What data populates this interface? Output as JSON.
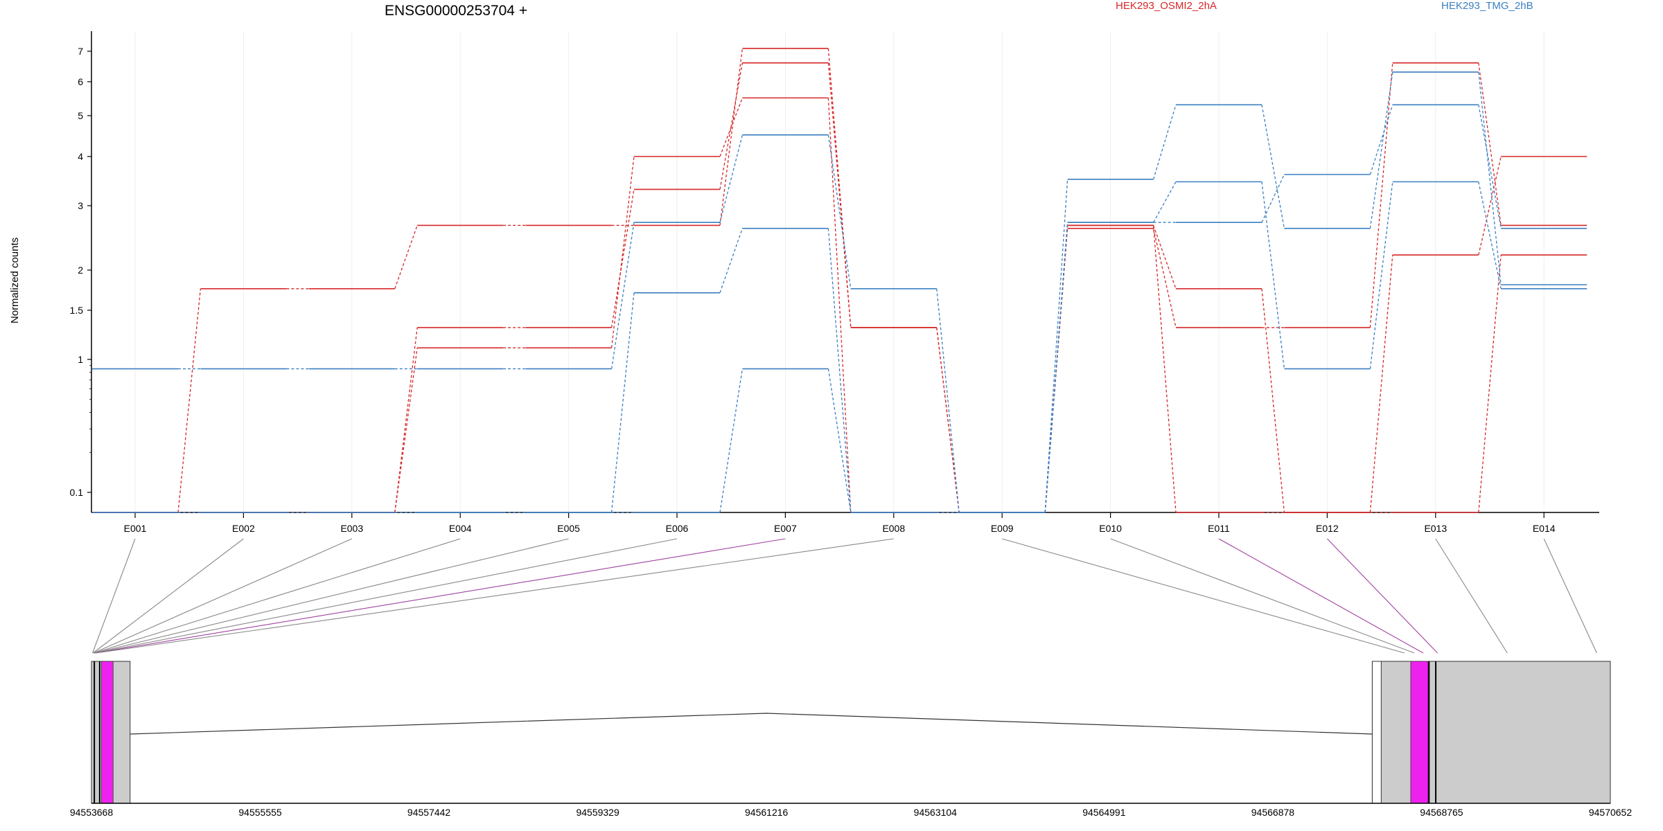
{
  "chart_data": {
    "type": "line",
    "title": "ENSG00000253704 +",
    "ylabel": "Normalized counts",
    "xlabel": "",
    "y_scale": "log",
    "y_ticks": [
      "0.1",
      "1",
      "1.5",
      "2",
      "3",
      "4",
      "5",
      "6",
      "7"
    ],
    "categories": [
      "E001",
      "E002",
      "E003",
      "E004",
      "E005",
      "E006",
      "E007",
      "E008",
      "E009",
      "E010",
      "E011",
      "E012",
      "E013",
      "E014"
    ],
    "legend": [
      {
        "label": "HEK293_OSMI2_2hA",
        "color": "#d62728"
      },
      {
        "label": "HEK293_TMG_2hB",
        "color": "#3a7fc1"
      }
    ],
    "series": [
      {
        "group": 0,
        "values": [
          0,
          1.75,
          1.75,
          2.65,
          2.65,
          2.65,
          7.1,
          1.3,
          0,
          2.6,
          1.3,
          1.3,
          6.6,
          2.65
        ]
      },
      {
        "group": 0,
        "values": [
          0,
          0,
          0,
          1.3,
          1.3,
          3.3,
          6.6,
          1.3,
          0,
          2.65,
          1.75,
          0,
          2.2,
          4.0
        ]
      },
      {
        "group": 0,
        "values": [
          0,
          0,
          0,
          1.1,
          1.1,
          4.0,
          5.5,
          0,
          0,
          2.65,
          0,
          0,
          0,
          2.2
        ]
      },
      {
        "group": 1,
        "values": [
          0.85,
          0.85,
          0.85,
          0.85,
          0.85,
          2.7,
          4.5,
          1.75,
          0,
          3.5,
          5.3,
          2.6,
          6.3,
          1.8
        ]
      },
      {
        "group": 1,
        "values": [
          0,
          0,
          0,
          0,
          0,
          1.7,
          2.6,
          0,
          0,
          2.7,
          2.7,
          3.6,
          5.3,
          2.6
        ]
      },
      {
        "group": 1,
        "values": [
          0,
          0,
          0,
          0,
          0,
          0,
          0.85,
          0,
          0,
          2.7,
          3.45,
          0.85,
          3.45,
          1.75
        ]
      }
    ],
    "genome_axis": {
      "tick_labels": [
        "94553668",
        "94555555",
        "94557442",
        "94559329",
        "94561216",
        "94563104",
        "94564991",
        "94566878",
        "94568765",
        "94570652"
      ],
      "start": 94553668,
      "end": 94570652,
      "exon_links": [
        {
          "exon": "E001",
          "genomic": 94553680,
          "highlight": false
        },
        {
          "exon": "E002",
          "genomic": 94553685,
          "highlight": false
        },
        {
          "exon": "E003",
          "genomic": 94553690,
          "highlight": false
        },
        {
          "exon": "E004",
          "genomic": 94553695,
          "highlight": false
        },
        {
          "exon": "E005",
          "genomic": 94553700,
          "highlight": false
        },
        {
          "exon": "E006",
          "genomic": 94553705,
          "highlight": false
        },
        {
          "exon": "E007",
          "genomic": 94553710,
          "highlight": true
        },
        {
          "exon": "E008",
          "genomic": 94553720,
          "highlight": false
        },
        {
          "exon": "E009",
          "genomic": 94568350,
          "highlight": false
        },
        {
          "exon": "E010",
          "genomic": 94568460,
          "highlight": false
        },
        {
          "exon": "E011",
          "genomic": 94568560,
          "highlight": true
        },
        {
          "exon": "E012",
          "genomic": 94568720,
          "highlight": true
        },
        {
          "exon": "E013",
          "genomic": 94569500,
          "highlight": false
        },
        {
          "exon": "E014",
          "genomic": 94570500,
          "highlight": false
        }
      ],
      "gene_blocks": [
        {
          "start": 94553668,
          "end": 94554100,
          "fill": "#cccccc"
        },
        {
          "start": 94567990,
          "end": 94570652,
          "fill": "#cccccc"
        }
      ],
      "highlight_blocks": [
        {
          "start": 94553780,
          "end": 94553910
        },
        {
          "start": 94568420,
          "end": 94568630
        }
      ],
      "white_blocks": [
        {
          "start": 94567990,
          "end": 94568090
        }
      ],
      "intron": {
        "from": 94554100,
        "to": 94567990,
        "apex": 94561216
      }
    }
  }
}
